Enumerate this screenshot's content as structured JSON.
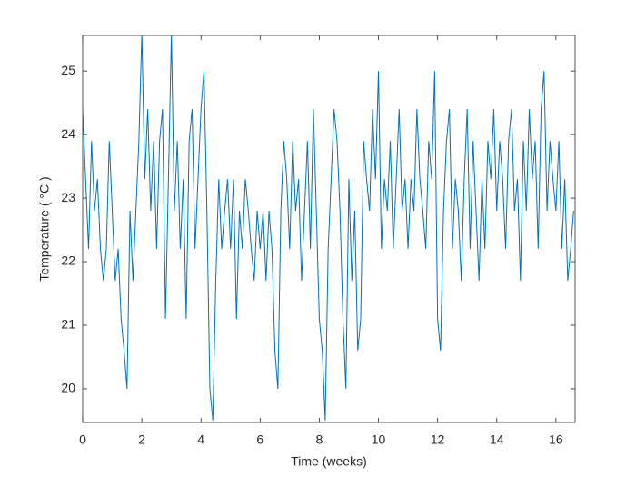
{
  "chart_data": {
    "type": "line",
    "xlabel": "Time (weeks)",
    "ylabel": "Temperature ( °C )",
    "x": [
      0,
      0.1,
      0.2,
      0.3,
      0.4,
      0.5,
      0.6,
      0.7,
      0.8,
      0.9,
      1,
      1.1,
      1.2,
      1.3,
      1.4,
      1.5,
      1.6,
      1.7,
      1.8,
      1.9,
      2,
      2.1,
      2.2,
      2.3,
      2.4,
      2.5,
      2.6,
      2.7,
      2.8,
      2.9,
      3,
      3.1,
      3.2,
      3.3,
      3.4,
      3.5,
      3.6,
      3.7,
      3.8,
      3.9,
      4,
      4.1,
      4.2,
      4.3,
      4.4,
      4.5,
      4.6,
      4.7,
      4.8,
      4.9,
      5,
      5.1,
      5.2,
      5.3,
      5.4,
      5.5,
      5.6,
      5.7,
      5.8,
      5.9,
      6,
      6.1,
      6.2,
      6.3,
      6.4,
      6.5,
      6.6,
      6.7,
      6.8,
      6.9,
      7,
      7.1,
      7.2,
      7.3,
      7.4,
      7.5,
      7.6,
      7.7,
      7.8,
      7.9,
      8,
      8.1,
      8.2,
      8.3,
      8.4,
      8.5,
      8.6,
      8.7,
      8.8,
      8.9,
      9,
      9.1,
      9.2,
      9.3,
      9.4,
      9.5,
      9.6,
      9.7,
      9.8,
      9.9,
      10,
      10.1,
      10.2,
      10.3,
      10.4,
      10.5,
      10.6,
      10.7,
      10.8,
      10.9,
      11,
      11.1,
      11.2,
      11.3,
      11.4,
      11.5,
      11.6,
      11.7,
      11.8,
      11.9,
      12,
      12.1,
      12.2,
      12.3,
      12.4,
      12.5,
      12.6,
      12.7,
      12.8,
      12.9,
      13,
      13.1,
      13.2,
      13.3,
      13.4,
      13.5,
      13.6,
      13.7,
      13.8,
      13.9,
      14,
      14.1,
      14.2,
      14.3,
      14.4,
      14.5,
      14.6,
      14.7,
      14.8,
      14.9,
      15,
      15.1,
      15.2,
      15.3,
      15.4,
      15.5,
      15.6,
      15.7,
      15.8,
      15.9,
      16,
      16.1,
      16.2,
      16.3,
      16.4,
      16.5,
      16.6
    ],
    "values": [
      24.4,
      23.3,
      22.2,
      23.9,
      22.8,
      23.3,
      22.2,
      21.7,
      22.2,
      23.9,
      22.8,
      21.7,
      22.2,
      21.1,
      20.6,
      20.0,
      22.8,
      21.7,
      22.8,
      23.9,
      25.6,
      23.3,
      24.4,
      22.8,
      23.9,
      22.2,
      23.9,
      24.4,
      21.1,
      23.3,
      25.6,
      22.8,
      23.9,
      22.2,
      23.3,
      21.1,
      23.9,
      24.4,
      22.2,
      23.3,
      24.4,
      25.0,
      22.8,
      20.0,
      19.5,
      21.7,
      23.3,
      22.2,
      22.8,
      23.3,
      22.2,
      23.3,
      21.1,
      22.8,
      22.2,
      23.3,
      22.8,
      22.2,
      21.7,
      22.8,
      22.2,
      22.8,
      21.7,
      22.8,
      22.2,
      20.6,
      20.0,
      22.8,
      23.9,
      23.3,
      22.2,
      23.9,
      22.8,
      23.3,
      21.7,
      22.8,
      23.9,
      22.2,
      24.4,
      22.8,
      21.1,
      20.6,
      19.5,
      22.2,
      23.3,
      24.4,
      23.9,
      22.8,
      21.1,
      20.0,
      23.3,
      21.7,
      22.8,
      20.6,
      21.1,
      23.9,
      23.3,
      22.8,
      24.4,
      23.3,
      25.0,
      22.2,
      23.3,
      22.8,
      23.9,
      22.2,
      23.3,
      24.4,
      22.8,
      23.3,
      22.2,
      23.3,
      22.8,
      24.4,
      23.3,
      22.8,
      22.2,
      23.9,
      23.3,
      25.0,
      21.1,
      20.6,
      22.8,
      23.9,
      24.4,
      22.2,
      23.3,
      22.8,
      21.7,
      23.3,
      24.4,
      22.2,
      23.9,
      22.8,
      21.7,
      23.3,
      22.2,
      23.9,
      23.3,
      24.4,
      22.8,
      23.9,
      23.3,
      22.2,
      23.9,
      24.4,
      22.8,
      23.3,
      21.7,
      23.9,
      22.8,
      24.4,
      23.3,
      23.9,
      22.2,
      24.4,
      25.0,
      22.8,
      23.9,
      23.3,
      22.8,
      23.9,
      22.2,
      23.3,
      21.7,
      22.2,
      22.8
    ],
    "color": "#0072bd",
    "xlim": [
      0,
      16.65
    ],
    "xticks": [
      0,
      2,
      4,
      6,
      8,
      10,
      12,
      14,
      16
    ],
    "ylim": [
      19.47,
      25.56
    ],
    "yticks": [
      20,
      21,
      22,
      23,
      24,
      25
    ]
  }
}
